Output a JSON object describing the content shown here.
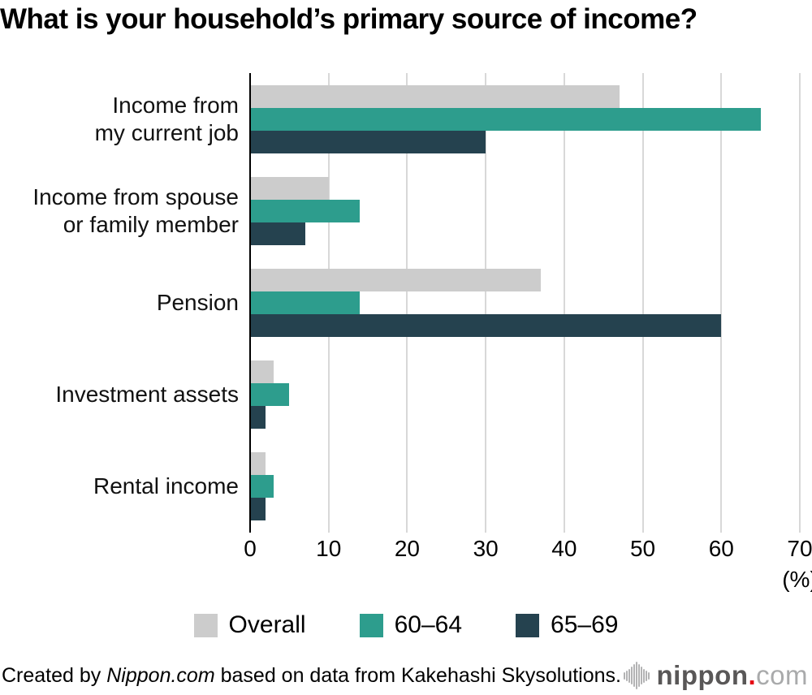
{
  "title": "What is your household’s primary source of income?",
  "chart_data": {
    "type": "bar",
    "orientation": "horizontal",
    "title": "What is your household’s primary source of income?",
    "categories": [
      "Income from my current job",
      "Income from spouse or family member",
      "Pension",
      "Investment assets",
      "Rental income"
    ],
    "category_label_lines": [
      [
        "Income from",
        "my current job"
      ],
      [
        "Income from spouse",
        "or family member"
      ],
      [
        "Pension"
      ],
      [
        "Investment assets"
      ],
      [
        "Rental income"
      ]
    ],
    "series": [
      {
        "name": "Overall",
        "color": "#cccccc",
        "values": [
          47,
          10,
          37,
          3,
          2
        ]
      },
      {
        "name": "60–64",
        "color": "#2d9d8d",
        "values": [
          65,
          14,
          14,
          5,
          3
        ]
      },
      {
        "name": "65–69",
        "color": "#25424f",
        "values": [
          30,
          7,
          60,
          2,
          2
        ]
      }
    ],
    "xlim": [
      0,
      70
    ],
    "x_ticks": [
      "0",
      "10",
      "20",
      "30",
      "40",
      "50",
      "60",
      "70"
    ],
    "x_unit_label": "(%)",
    "grid": true,
    "legend_position": "bottom"
  },
  "footer": {
    "credit_prefix": "Created by ",
    "credit_source": "Nippon.com",
    "credit_suffix": " based on data from Kakehashi Skysolutions.",
    "logo_text_main": "nippon",
    "logo_text_dot": ".",
    "logo_text_tld": "com"
  },
  "colors": {
    "bar_overall": "#cccccc",
    "bar_60_64": "#2d9d8d",
    "bar_65_69": "#25424f",
    "gridline": "#d8d8d8",
    "axis_line": "#000000",
    "logo_red": "#e60012",
    "logo_dark_gray": "#595757",
    "logo_light_gray": "#a9aaab",
    "logo_icon_gray": "#b3b3b4"
  },
  "logo_icon_bar_heights": [
    9,
    13,
    17,
    22,
    28,
    34,
    28,
    22,
    17,
    13,
    9
  ]
}
